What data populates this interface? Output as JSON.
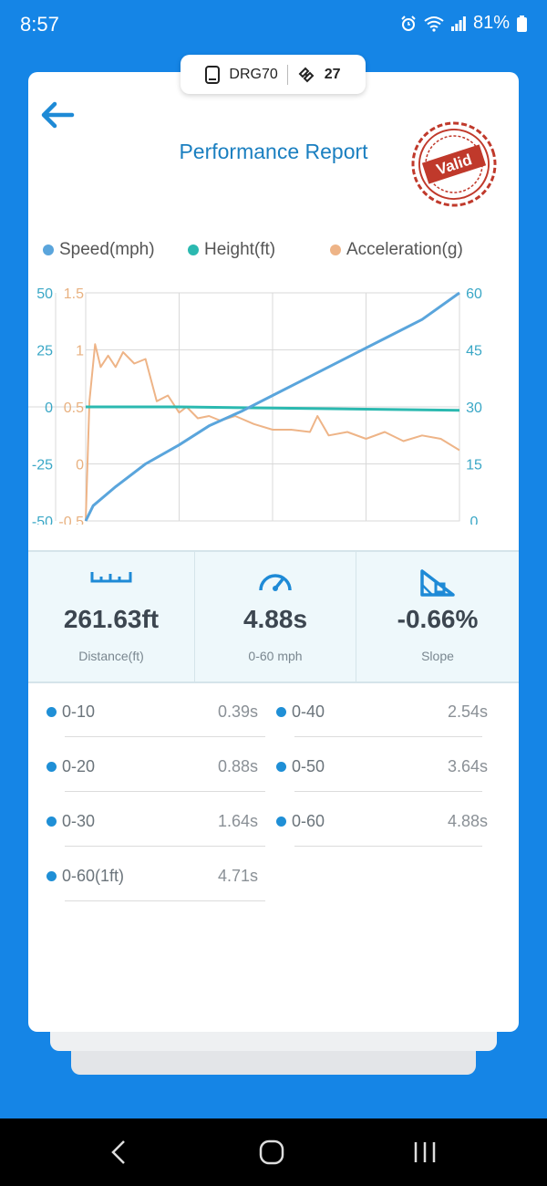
{
  "status": {
    "time": "8:57",
    "battery": "81%"
  },
  "device": {
    "name": "DRG70",
    "satellites": "27"
  },
  "header": {
    "title": "Performance Report",
    "stamp": "Valid"
  },
  "chart_data": {
    "type": "line",
    "legend": [
      "Speed(mph)",
      "Height(ft)",
      "Acceleration(g)"
    ],
    "axes": {
      "height_ticks": [
        "50",
        "25",
        "0",
        "-25",
        "-50"
      ],
      "accel_ticks": [
        "1.5",
        "1",
        "0.5",
        "0",
        "-0.5"
      ],
      "speed_ticks": [
        "60",
        "45",
        "30",
        "15",
        "0"
      ],
      "height_range": [
        -50,
        50
      ],
      "accel_range": [
        -0.5,
        1.5
      ],
      "speed_range": [
        0,
        60
      ]
    },
    "series": [
      {
        "name": "Speed(mph)",
        "color": "#5aa5dc",
        "x": [
          0,
          0.02,
          0.08,
          0.16,
          0.25,
          0.33,
          0.42,
          0.5,
          0.6,
          0.7,
          0.8,
          0.9,
          1.0
        ],
        "values": [
          0,
          4,
          9,
          15,
          20,
          25,
          29,
          33,
          38,
          43,
          48,
          53,
          60
        ]
      },
      {
        "name": "Height(ft)",
        "color": "#2bb9b0",
        "x": [
          0,
          0.25,
          0.5,
          0.75,
          1.0
        ],
        "values": [
          0,
          0,
          -0.5,
          -1,
          -1.5
        ]
      },
      {
        "name": "Acceleration(g)",
        "color": "#eeb487",
        "x": [
          0,
          0.01,
          0.025,
          0.04,
          0.06,
          0.08,
          0.1,
          0.13,
          0.16,
          0.19,
          0.22,
          0.25,
          0.27,
          0.3,
          0.33,
          0.36,
          0.4,
          0.45,
          0.5,
          0.55,
          0.6,
          0.62,
          0.65,
          0.7,
          0.75,
          0.8,
          0.85,
          0.9,
          0.95,
          1.0
        ],
        "values": [
          -0.5,
          0.55,
          1.05,
          0.85,
          0.95,
          0.85,
          0.98,
          0.88,
          0.92,
          0.55,
          0.6,
          0.45,
          0.5,
          0.4,
          0.42,
          0.38,
          0.42,
          0.35,
          0.3,
          0.3,
          0.28,
          0.42,
          0.25,
          0.28,
          0.22,
          0.28,
          0.2,
          0.25,
          0.22,
          0.12
        ]
      }
    ]
  },
  "stats": [
    {
      "value": "261.63ft",
      "label": "Distance(ft)",
      "icon": "ruler-icon"
    },
    {
      "value": "4.88s",
      "label": "0-60 mph",
      "icon": "speedometer-icon"
    },
    {
      "value": "-0.66%",
      "label": "Slope",
      "icon": "slope-icon"
    }
  ],
  "times": [
    {
      "label": "0-10",
      "value": "0.39s"
    },
    {
      "label": "0-40",
      "value": "2.54s"
    },
    {
      "label": "0-20",
      "value": "0.88s"
    },
    {
      "label": "0-50",
      "value": "3.64s"
    },
    {
      "label": "0-30",
      "value": "1.64s"
    },
    {
      "label": "0-60",
      "value": "4.88s"
    },
    {
      "label": "0-60(1ft)",
      "value": "4.71s"
    }
  ]
}
